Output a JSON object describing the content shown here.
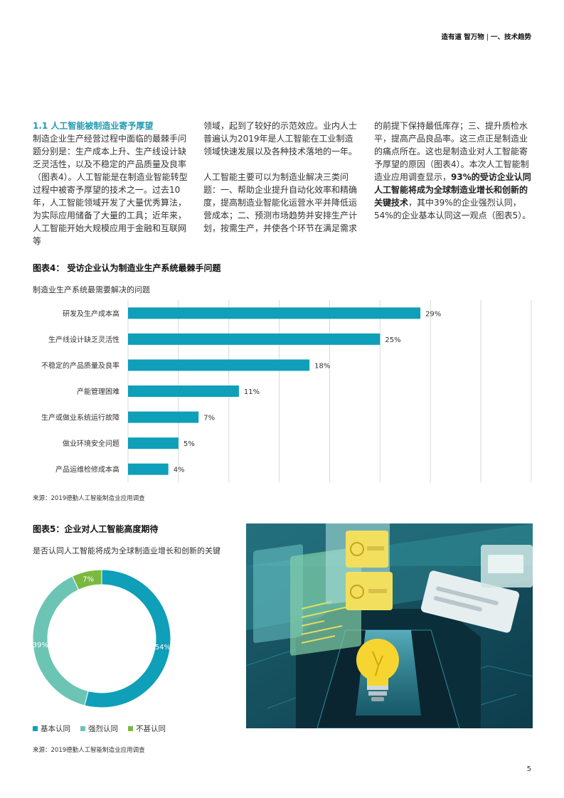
{
  "header": {
    "title": "造有道 智万物",
    "section": "一、技术趋势"
  },
  "section": {
    "title": "1.1 人工智能被制造业寄予厚望"
  },
  "text": {
    "col1_p1": "制造企业生产经营过程中面临的最棘手问题分别是：生产成本上升、生产线设计缺乏灵活性，以及不稳定的产品质量及良率（图表4）。人工智能是在制造业智能转型过程中被寄予厚望的技术之一。过去10年，人工智能领域开发了大量优秀算法，为实际应用储备了大量的工具；近年来，人工智能开始大规模应用于金融和互联网等",
    "col2_p1": "领域，起到了较好的示范效应。业内人士普遍认为2019年是人工智能在工业制造领域快速发展以及各种技术落地的一年。",
    "col2_p2": "人工智能主要可以为制造业解决三类问题：一、帮助企业提升自动化效率和精确度，提高制造业智能化运营水平并降低运营成本；二、预测市场趋势并安排生产计划，按需生产，并使各个环节在满足需求",
    "col3_a": "的前提下保持最低库存；三、提升质检水平，提高产品良品率。这三点正是制造业的痛点所在。这也是制造业对人工智能寄予厚望的原因（图表4）。本次人工智能制造业应用调查显示，",
    "col3_bold": "93%的受访企业认同人工智能将成为全球制造业增长和创新的关键技术",
    "col3_b": "，其中39%的企业强烈认同，54%的企业基本认同这一观点（图表5）。"
  },
  "figure4": {
    "title": "图表4：  受访企业认为制造业生产系统最棘手问题",
    "subtitle": "制造业生产系统最需要解决的问题",
    "source": "来源：2019德勤人工智能制造业应用调查"
  },
  "figure5": {
    "title": "图表5：企业对人工智能高度期待",
    "subtitle": "是否认同人工智能将成为全球制造业增长和创新的关键",
    "source": "来源：2019德勤人工智能制造业应用调查"
  },
  "colors": {
    "teal": "#0f9fb8",
    "light_teal": "#6cc4b4",
    "green": "#7ab940",
    "grid": "#d8d8d8"
  },
  "chart_data": [
    {
      "type": "bar",
      "orientation": "horizontal",
      "categories": [
        "研发及生产成本高",
        "生产线设计缺乏灵活性",
        "不稳定的产品质量及良率",
        "产能管理困难",
        "生产或做业系统运行故障",
        "做业环境安全问题",
        "产品运维检修成本高"
      ],
      "values": [
        29,
        25,
        18,
        11,
        7,
        5,
        4
      ],
      "data_labels": [
        "29%",
        "25%",
        "18%",
        "11%",
        "7%",
        "5%",
        "4%"
      ],
      "xlim": [
        0,
        40
      ],
      "grid": true,
      "title": "图表4：  受访企业认为制造业生产系统最棘手问题"
    },
    {
      "type": "pie",
      "style": "donut",
      "labels": [
        "基本认同",
        "强烈认同",
        "不甚认同"
      ],
      "values": [
        54,
        39,
        7
      ],
      "data_labels": [
        "54%",
        "39%",
        "7%"
      ],
      "colors": [
        "#0f9fb8",
        "#6cc4b4",
        "#7ab940"
      ],
      "legend": "bottom",
      "title": "图表5：企业对人工智能高度期待"
    }
  ],
  "page_number": "5"
}
